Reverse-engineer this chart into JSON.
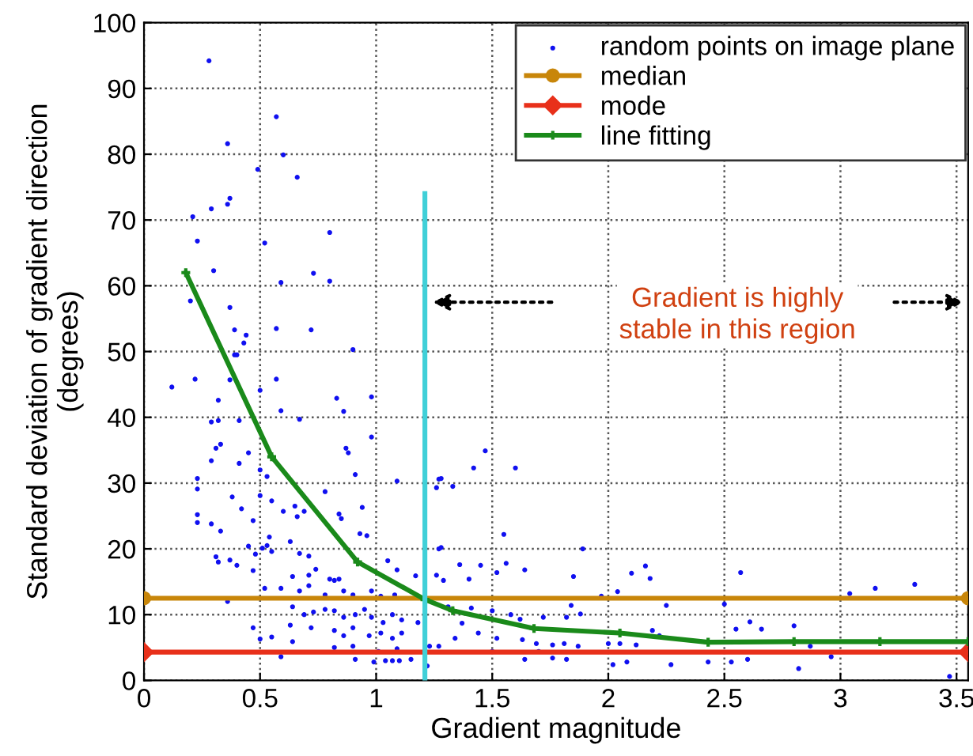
{
  "chart_data": {
    "type": "line",
    "xlabel": "Gradient magnitude",
    "ylabel": "Standard deviation of gradient direction\n(degrees)",
    "xlim": [
      0,
      3.55
    ],
    "xticks": [
      0,
      0.5,
      1,
      1.5,
      2,
      2.5,
      3,
      3.5
    ],
    "ylim": [
      0,
      100
    ],
    "yticks": [
      0,
      10,
      20,
      30,
      40,
      50,
      60,
      70,
      80,
      90,
      100
    ],
    "grid": true,
    "legend": "top right",
    "annotations": [
      "Gradient is highly\nstable in this region"
    ],
    "series": [
      {
        "name": "random points on image plane",
        "type": "scatter",
        "color": "#1010f0",
        "marker": "circle",
        "x": [
          0.28,
          0.57,
          0.36,
          0.6,
          0.49,
          0.66,
          0.37,
          0.36,
          0.29,
          0.21,
          0.8,
          0.23,
          0.52,
          0.3,
          0.73,
          0.8,
          0.59,
          0.2,
          0.37,
          0.39,
          0.57,
          0.72,
          0.44,
          0.43,
          0.9,
          0.39,
          0.12,
          0.22,
          0.37,
          0.4,
          0.5,
          0.57,
          0.32,
          0.59,
          0.67,
          0.83,
          0.86,
          0.98,
          0.29,
          0.32,
          0.41,
          0.31,
          0.33,
          0.29,
          0.41,
          0.45,
          0.23,
          0.23,
          0.5,
          0.53,
          0.87,
          0.88,
          0.98,
          0.91,
          1.09,
          1.28,
          0.23,
          0.23,
          0.29,
          0.38,
          0.42,
          0.47,
          0.5,
          0.55,
          0.6,
          0.65,
          0.66,
          0.69,
          0.78,
          0.84,
          0.85,
          0.94,
          0.93,
          0.96,
          0.33,
          0.45,
          0.48,
          0.51,
          0.54,
          0.53,
          0.55,
          0.63,
          0.67,
          0.71,
          0.74,
          0.8,
          0.32,
          0.31,
          0.37,
          0.4,
          0.47,
          0.64,
          0.71,
          0.82,
          0.84,
          1.05,
          1.09,
          1.17,
          1.28,
          0.52,
          0.59,
          0.67,
          0.71,
          0.78,
          0.86,
          0.9,
          0.98,
          1.02,
          1.08,
          0.36,
          0.64,
          0.69,
          0.73,
          0.78,
          0.82,
          0.86,
          0.91,
          0.95,
          0.98,
          1.03,
          1.07,
          1.11,
          1.18,
          0.47,
          0.63,
          0.72,
          0.82,
          0.86,
          0.9,
          0.97,
          1.02,
          1.07,
          1.11,
          0.5,
          0.55,
          0.64,
          0.82,
          0.9,
          1.01,
          1.09,
          0.91,
          0.99,
          1.04,
          1.07,
          1.1,
          1.22,
          0.59,
          1.15,
          1.23,
          1.47,
          1.42,
          1.6,
          1.27,
          1.33,
          1.26,
          1.55,
          1.27,
          1.89,
          1.36,
          1.45,
          1.56,
          1.64,
          1.52,
          1.26,
          1.29,
          1.4,
          1.85,
          2.1,
          2.16,
          2.18,
          2.57,
          3.04,
          3.15,
          3.32,
          1.97,
          2.04,
          2.25,
          2.5,
          1.5,
          1.58,
          1.62,
          1.72,
          1.84,
          1.88,
          1.82,
          1.31,
          1.41,
          2.19,
          2.55,
          2.61,
          2.66,
          2.8,
          2.87,
          2.0,
          2.05,
          2.12,
          2.22,
          1.69,
          1.76,
          1.81,
          1.87,
          1.63,
          1.52,
          1.44,
          1.37,
          1.34,
          1.27,
          2.43,
          2.53,
          2.6,
          2.27,
          2.02,
          2.08,
          1.76,
          1.64,
          1.82,
          2.82,
          2.96,
          3.47,
          1.7,
          1.5
        ],
        "values": [
          94.2,
          85.7,
          81.6,
          79.9,
          77.7,
          76.5,
          73.3,
          72.4,
          71.7,
          70.5,
          68.1,
          66.8,
          66.5,
          62.3,
          61.9,
          60.7,
          60.5,
          57.7,
          56.7,
          53.3,
          53.5,
          53.3,
          52.5,
          51.3,
          50.3,
          49.5,
          44.6,
          45.8,
          45.7,
          49.5,
          44.1,
          45.8,
          42.6,
          41.0,
          39.7,
          42.9,
          40.9,
          43.1,
          39.3,
          39.5,
          39.5,
          35.3,
          35.9,
          33.4,
          33.0,
          34.6,
          30.7,
          29.1,
          32.0,
          31.0,
          35.3,
          34.6,
          37.0,
          31.3,
          30.3,
          30.7,
          25.2,
          24.0,
          23.8,
          27.9,
          26.1,
          24.3,
          28.1,
          27.3,
          25.7,
          26.5,
          24.9,
          25.7,
          28.7,
          25.3,
          24.6,
          26.3,
          22.3,
          22.0,
          22.7,
          20.4,
          19.2,
          20.1,
          21.8,
          20.5,
          19.6,
          21.1,
          19.3,
          18.9,
          16.9,
          15.4,
          18.0,
          18.8,
          18.3,
          17.5,
          16.7,
          15.8,
          16.0,
          15.2,
          15.4,
          18.2,
          16.8,
          15.9,
          20.2,
          14.0,
          14.0,
          13.6,
          14.4,
          13.0,
          13.6,
          13.0,
          13.6,
          12.8,
          13.0,
          12.0,
          11.2,
          10.0,
          10.4,
          10.8,
          10.6,
          9.6,
          10.0,
          10.8,
          9.6,
          8.8,
          10.0,
          9.2,
          8.8,
          8.0,
          8.4,
          8.0,
          7.6,
          6.8,
          8.0,
          6.8,
          7.2,
          6.4,
          7.2,
          6.3,
          6.6,
          5.9,
          5.0,
          5.2,
          4.4,
          4.8,
          3.2,
          2.8,
          3.0,
          3.0,
          3.0,
          2.2,
          3.6,
          3.2,
          5.2,
          34.9,
          32.3,
          32.3,
          30.6,
          29.5,
          29.3,
          22.2,
          20.0,
          20.0,
          17.6,
          17.5,
          17.8,
          16.8,
          16.4,
          16.0,
          15.2,
          15.4,
          15.8,
          16.3,
          17.4,
          15.5,
          16.4,
          13.2,
          14.0,
          14.6,
          12.8,
          13.5,
          11.4,
          11.6,
          10.6,
          10.0,
          9.3,
          9.6,
          11.4,
          10.1,
          9.6,
          11.2,
          11.0,
          7.6,
          7.8,
          8.9,
          7.8,
          8.3,
          5.2,
          5.6,
          5.6,
          5.4,
          6.8,
          5.6,
          5.4,
          5.6,
          5.2,
          6.2,
          6.4,
          7.2,
          8.7,
          6.4,
          5.2,
          2.8,
          2.8,
          3.2,
          2.4,
          2.4,
          2.8,
          3.4,
          3.2,
          3.2,
          1.8,
          3.6,
          0.6,
          4.4,
          4.4
        ]
      },
      {
        "name": "median",
        "color": "#c8860a",
        "marker": "circle",
        "x": [
          0,
          3.55
        ],
        "values": [
          12.5,
          12.5
        ]
      },
      {
        "name": "mode",
        "color": "#e8301a",
        "marker": "diamond",
        "x": [
          0,
          3.55
        ],
        "values": [
          4.3,
          4.3
        ]
      },
      {
        "name": "line fitting",
        "color": "#1a8a1a",
        "marker": "cross",
        "x": [
          0.18,
          0.55,
          0.92,
          1.21,
          1.33,
          1.68,
          2.05,
          2.43,
          2.8,
          3.17,
          3.55
        ],
        "values": [
          62,
          34,
          18,
          12.3,
          10.6,
          7.9,
          7.2,
          5.8,
          5.9,
          5.9,
          5.9
        ]
      },
      {
        "color": "#40d0d8",
        "marker": "none",
        "x": [
          1.21,
          1.21
        ],
        "values": [
          0,
          74
        ]
      }
    ]
  }
}
